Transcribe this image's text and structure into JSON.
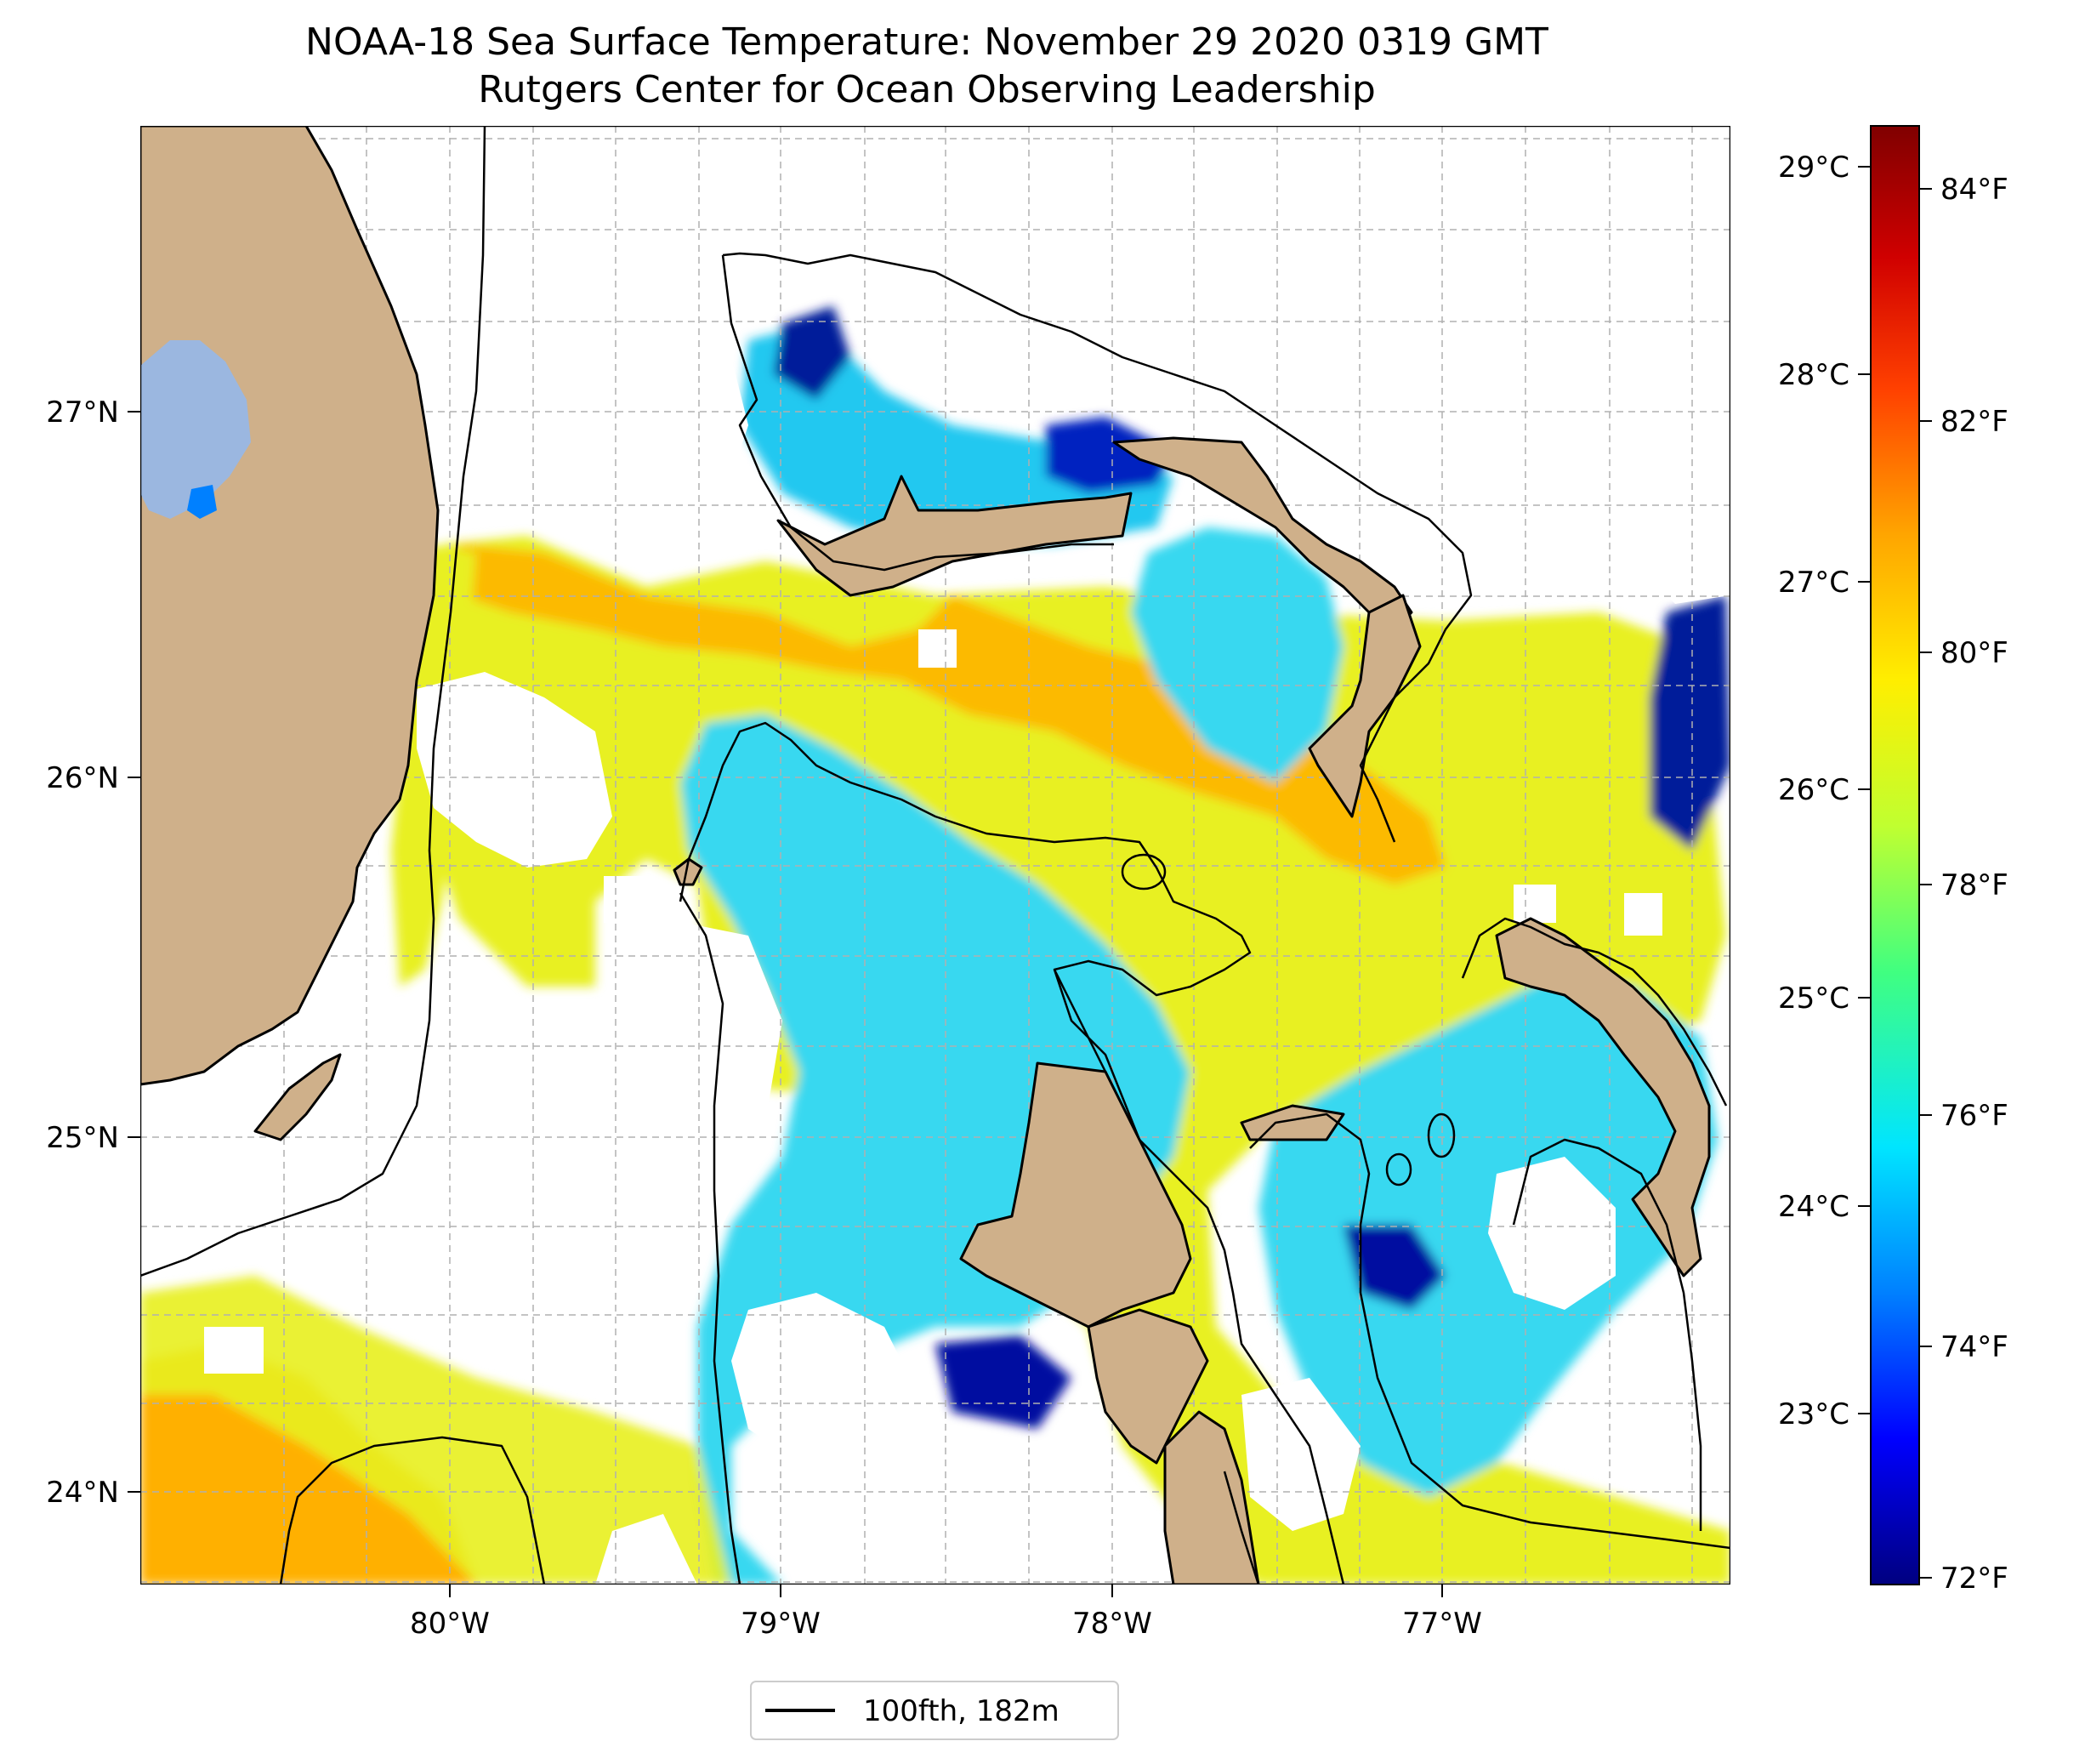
{
  "title_line1": "NOAA-18 Sea Surface Temperature: November 29 2020 0319 GMT",
  "title_line2": "Rutgers Center for Ocean Observing Leadership",
  "map": {
    "lon_ticks": [
      "80°W",
      "79°W",
      "78°W",
      "77°W"
    ],
    "lat_ticks": [
      "27°N",
      "26°N",
      "25°N",
      "24°N"
    ]
  },
  "colorbar": {
    "celsius_ticks": [
      "29°C",
      "28°C",
      "27°C",
      "26°C",
      "25°C",
      "24°C",
      "23°C"
    ],
    "fahrenheit_ticks": [
      "84°F",
      "82°F",
      "80°F",
      "78°F",
      "76°F",
      "74°F",
      "72°F"
    ],
    "colors": [
      "#000080",
      "#0000ff",
      "#0080ff",
      "#00e5ff",
      "#40ff80",
      "#c0ff30",
      "#ffee00",
      "#ffa500",
      "#ff4000",
      "#d00000",
      "#800000"
    ]
  },
  "colors": {
    "land": "#cfb08a",
    "lake": "#9bb7e0",
    "warm": "#ffb000",
    "yellow": "#eef21a",
    "cyan": "#20d0f0",
    "deep_blue": "#001a9a"
  },
  "legend": {
    "label": "100fth, 182m"
  }
}
